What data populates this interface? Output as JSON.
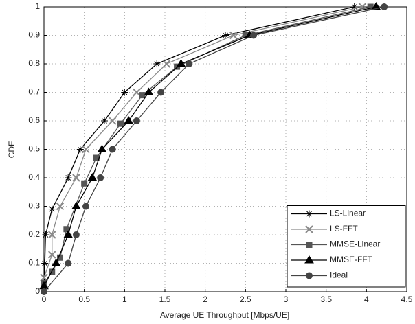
{
  "chart_data": {
    "type": "line",
    "xlabel": "Average UE Throughput [Mbps/UE]",
    "ylabel": "CDF",
    "xlim": [
      0,
      4.5
    ],
    "xticks": [
      0,
      0.5,
      1,
      1.5,
      2,
      2.5,
      3,
      3.5,
      4,
      4.5
    ],
    "ylim": [
      0,
      1
    ],
    "yticks": [
      0,
      0.1,
      0.2,
      0.3,
      0.4,
      0.5,
      0.6,
      0.7,
      0.8,
      0.9,
      1
    ],
    "grid": true,
    "legend": "lower right",
    "series": [
      {
        "name": "LS-Linear",
        "color": "#000000",
        "marker": "star",
        "x": [
          0,
          0.01,
          0.02,
          0.1,
          0.3,
          0.45,
          0.75,
          1.0,
          1.4,
          2.25,
          3.85
        ],
        "values": [
          0,
          0.1,
          0.2,
          0.29,
          0.4,
          0.5,
          0.6,
          0.7,
          0.8,
          0.9,
          1.0
        ]
      },
      {
        "name": "LS-FFT",
        "color": "#8a8a8a",
        "marker": "x",
        "x": [
          0,
          0.1,
          0.1,
          0.2,
          0.4,
          0.52,
          0.85,
          1.15,
          1.52,
          2.35,
          3.95
        ],
        "values": [
          0.05,
          0.13,
          0.2,
          0.3,
          0.4,
          0.5,
          0.6,
          0.7,
          0.8,
          0.9,
          1.0
        ]
      },
      {
        "name": "MMSE-Linear",
        "color": "#555555",
        "marker": "square",
        "x": [
          0,
          0.1,
          0.2,
          0.28,
          0.5,
          0.65,
          0.95,
          1.22,
          1.65,
          2.5,
          4.05
        ],
        "values": [
          0.03,
          0.07,
          0.12,
          0.22,
          0.38,
          0.47,
          0.59,
          0.69,
          0.79,
          0.9,
          1.0
        ]
      },
      {
        "name": "MMSE-FFT",
        "color": "#000000",
        "marker": "triangle",
        "x": [
          0,
          0.15,
          0.3,
          0.4,
          0.6,
          0.72,
          1.05,
          1.3,
          1.7,
          2.55,
          4.12
        ],
        "values": [
          0.02,
          0.1,
          0.2,
          0.3,
          0.4,
          0.5,
          0.6,
          0.7,
          0.8,
          0.9,
          1.0
        ]
      },
      {
        "name": "Ideal",
        "color": "#444444",
        "marker": "circle",
        "x": [
          0,
          0.3,
          0.4,
          0.52,
          0.7,
          0.85,
          1.15,
          1.45,
          1.8,
          2.6,
          4.22
        ],
        "values": [
          0,
          0.1,
          0.2,
          0.3,
          0.4,
          0.5,
          0.6,
          0.7,
          0.8,
          0.9,
          1.0
        ]
      }
    ]
  }
}
